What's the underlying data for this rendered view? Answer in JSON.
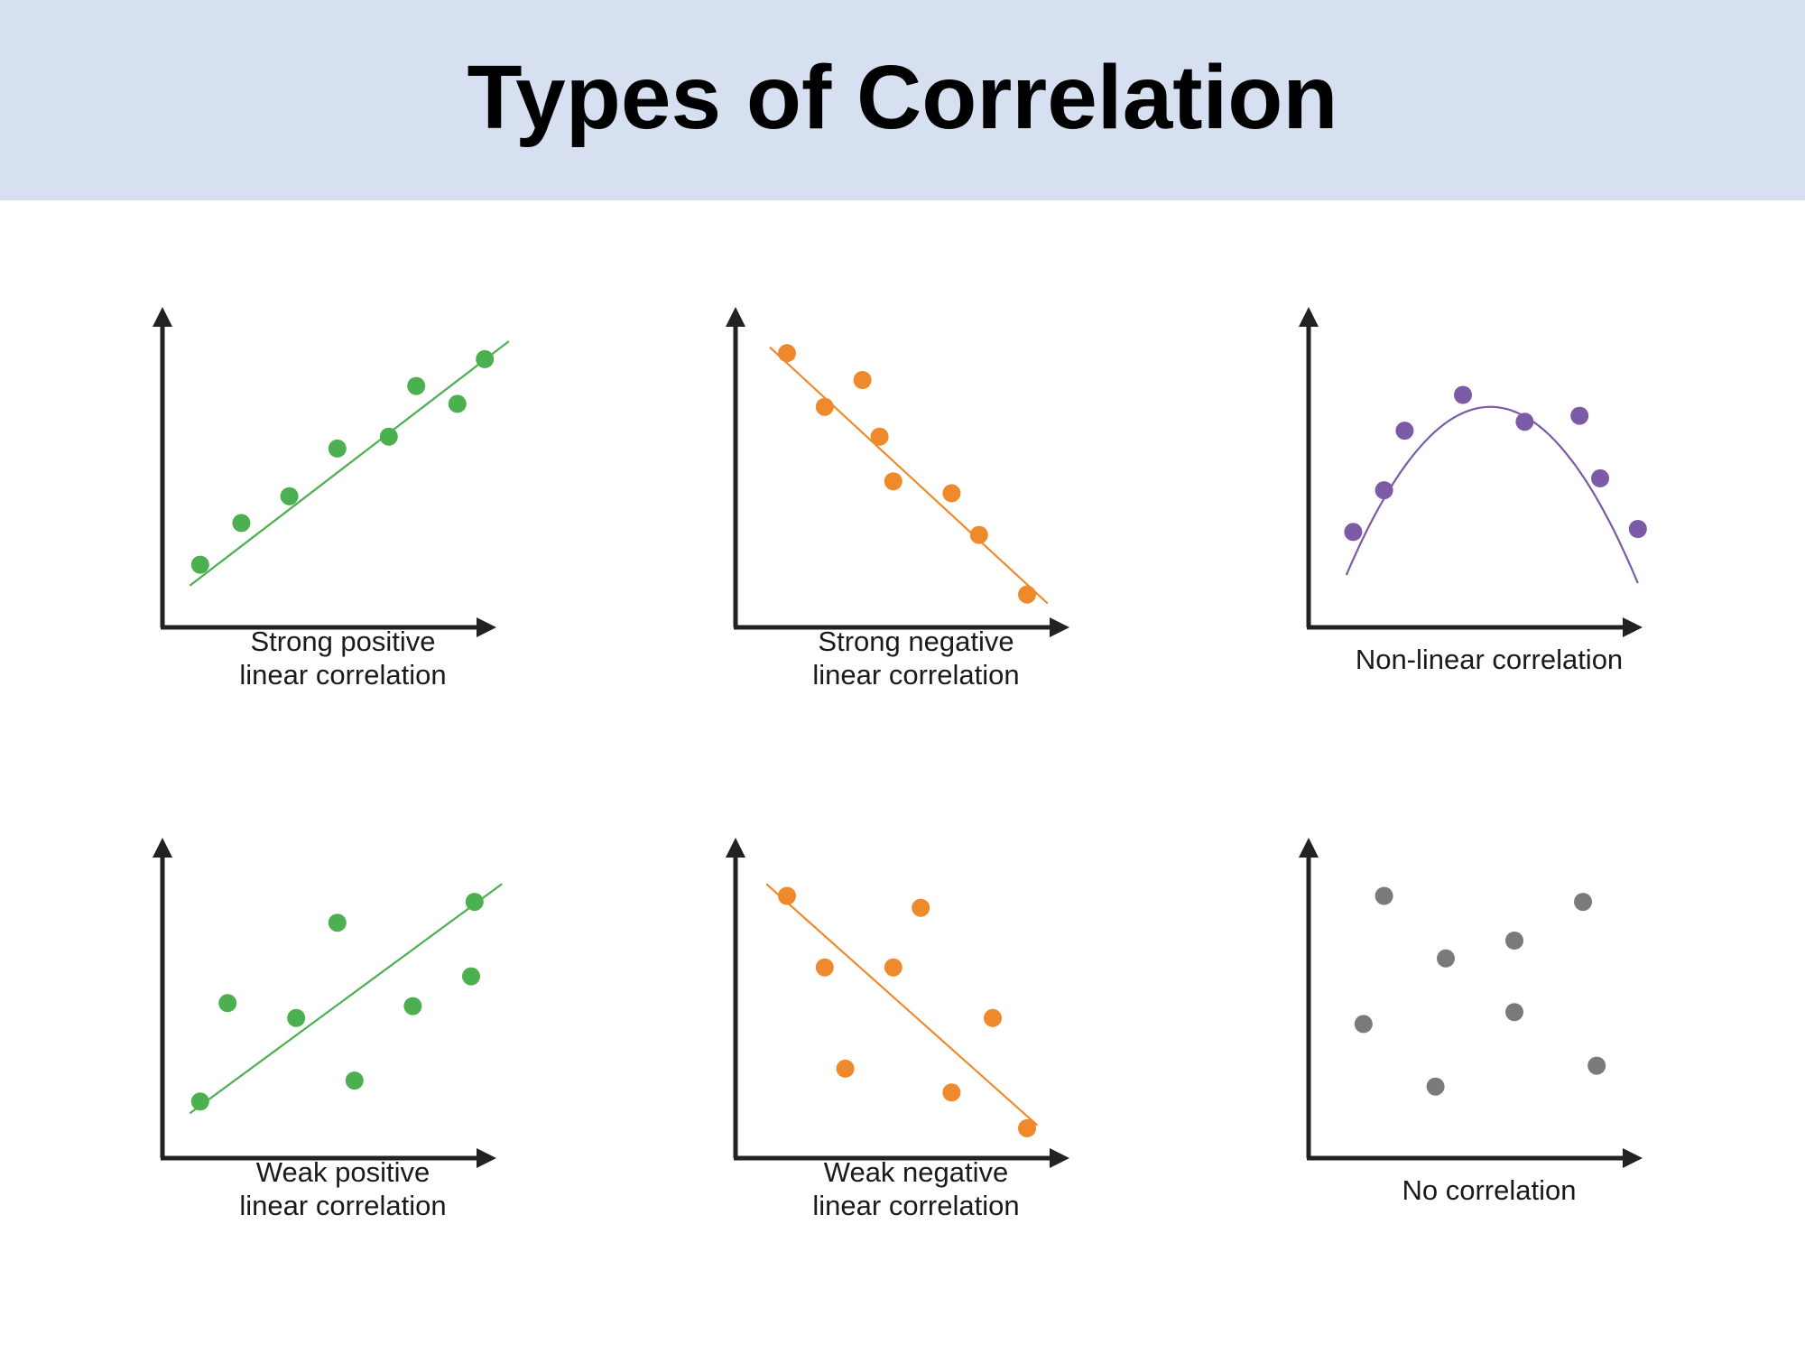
{
  "title": "Types of Correlation",
  "colors": {
    "header_bg": "#d6e0f0",
    "axis": "#222222",
    "green": "#4caf50",
    "orange": "#ee8a2c",
    "purple": "#7b5aa6",
    "gray": "#7a7a7a"
  },
  "chart_data": [
    {
      "type": "scatter",
      "caption": [
        "Strong positive",
        "linear correlation"
      ],
      "color": "#4caf50",
      "x": [
        0.11,
        0.23,
        0.37,
        0.51,
        0.66,
        0.74,
        0.86,
        0.94
      ],
      "y": [
        0.18,
        0.32,
        0.41,
        0.57,
        0.61,
        0.78,
        0.72,
        0.87
      ],
      "trend": {
        "kind": "linear",
        "x": [
          0.08,
          1.01
        ],
        "y": [
          0.11,
          0.93
        ]
      },
      "xlim": [
        0,
        1
      ],
      "ylim": [
        0,
        1
      ]
    },
    {
      "type": "scatter",
      "caption": [
        "Strong negative",
        "linear correlation"
      ],
      "color": "#ee8a2c",
      "x": [
        0.15,
        0.26,
        0.37,
        0.42,
        0.46,
        0.63,
        0.71,
        0.85
      ],
      "y": [
        0.89,
        0.71,
        0.8,
        0.61,
        0.46,
        0.42,
        0.28,
        0.08
      ],
      "trend": {
        "kind": "linear",
        "x": [
          0.1,
          0.91
        ],
        "y": [
          0.91,
          0.05
        ]
      },
      "xlim": [
        0,
        1
      ],
      "ylim": [
        0,
        1
      ]
    },
    {
      "type": "scatter",
      "caption": [
        "Non-linear correlation"
      ],
      "color": "#7b5aa6",
      "x": [
        0.13,
        0.22,
        0.28,
        0.45,
        0.63,
        0.79,
        0.85,
        0.96
      ],
      "y": [
        0.29,
        0.43,
        0.63,
        0.75,
        0.66,
        0.68,
        0.47,
        0.3
      ],
      "trend": {
        "kind": "quadratic",
        "vertex": [
          0.53,
          0.71
        ],
        "a": -3.2,
        "x": [
          0.11,
          0.96
        ]
      },
      "xlim": [
        0,
        1
      ],
      "ylim": [
        0,
        1
      ]
    },
    {
      "type": "scatter",
      "caption": [
        "Weak positive",
        "linear correlation"
      ],
      "color": "#4caf50",
      "x": [
        0.11,
        0.19,
        0.39,
        0.51,
        0.56,
        0.73,
        0.9,
        0.91
      ],
      "y": [
        0.16,
        0.49,
        0.44,
        0.76,
        0.23,
        0.48,
        0.58,
        0.83
      ],
      "trend": {
        "kind": "linear",
        "x": [
          0.08,
          0.99
        ],
        "y": [
          0.12,
          0.89
        ]
      },
      "xlim": [
        0,
        1
      ],
      "ylim": [
        0,
        1
      ]
    },
    {
      "type": "scatter",
      "caption": [
        "Weak negative",
        "linear correlation"
      ],
      "color": "#ee8a2c",
      "x": [
        0.15,
        0.26,
        0.32,
        0.46,
        0.54,
        0.63,
        0.75,
        0.85
      ],
      "y": [
        0.85,
        0.61,
        0.27,
        0.61,
        0.81,
        0.19,
        0.44,
        0.07
      ],
      "trend": {
        "kind": "linear",
        "x": [
          0.09,
          0.88
        ],
        "y": [
          0.89,
          0.08
        ]
      },
      "xlim": [
        0,
        1
      ],
      "ylim": [
        0,
        1
      ]
    },
    {
      "type": "scatter",
      "caption": [
        "No correlation"
      ],
      "color": "#7a7a7a",
      "x": [
        0.16,
        0.22,
        0.37,
        0.4,
        0.6,
        0.6,
        0.8,
        0.84
      ],
      "y": [
        0.42,
        0.85,
        0.21,
        0.64,
        0.46,
        0.7,
        0.83,
        0.28
      ],
      "xlim": [
        0,
        1
      ],
      "ylim": [
        0,
        1
      ]
    }
  ]
}
